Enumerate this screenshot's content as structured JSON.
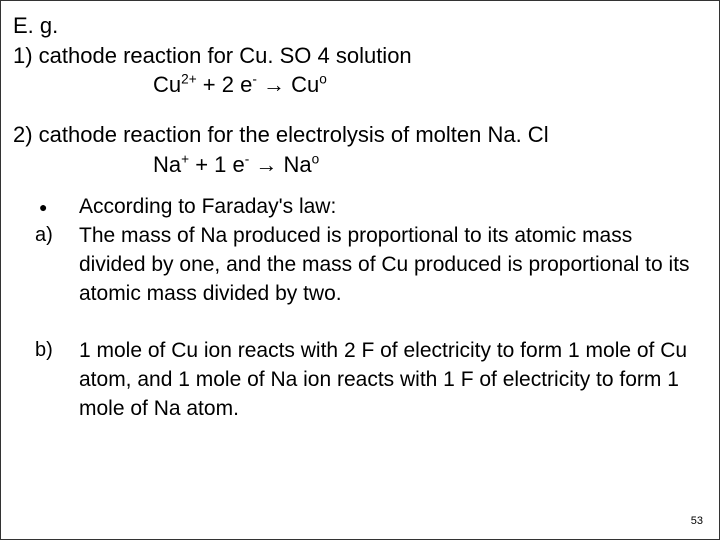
{
  "text_color": "#000000",
  "background_color": "#ffffff",
  "font_family": "Arial",
  "heading_eg": "E. g.",
  "section1_label": "1) cathode reaction for Cu. SO 4 solution",
  "eq1": {
    "lhs_species": "Cu",
    "lhs_charge": "2+",
    "plus": "  +  ",
    "coeff": "2 e",
    "e_super": "-",
    "arrow": "  →  ",
    "rhs_species": "Cu",
    "rhs_super": "o"
  },
  "section2_label": "2) cathode reaction for the electrolysis of molten Na. Cl",
  "eq2": {
    "lhs_species": "Na",
    "lhs_charge": "+",
    "plus": "  +  ",
    "coeff": "1 e",
    "e_super": "-",
    "arrow": " → ",
    "rhs_species": "Na",
    "rhs_super": "o"
  },
  "bullet_marker": "●",
  "bullet_text": "According to Faraday's law:",
  "item_a_marker": "a)",
  "item_a_text": "The mass of Na produced is proportional to its atomic mass divided by one, and the mass of Cu produced is proportional to its atomic mass divided by two.",
  "item_b_marker": "b)",
  "item_b_text": "1 mole of Cu ion reacts with 2 F of electricity to form 1 mole of Cu atom, and 1 mole of Na ion reacts with 1 F of electricity to form 1 mole of Na atom.",
  "page_number": "53"
}
